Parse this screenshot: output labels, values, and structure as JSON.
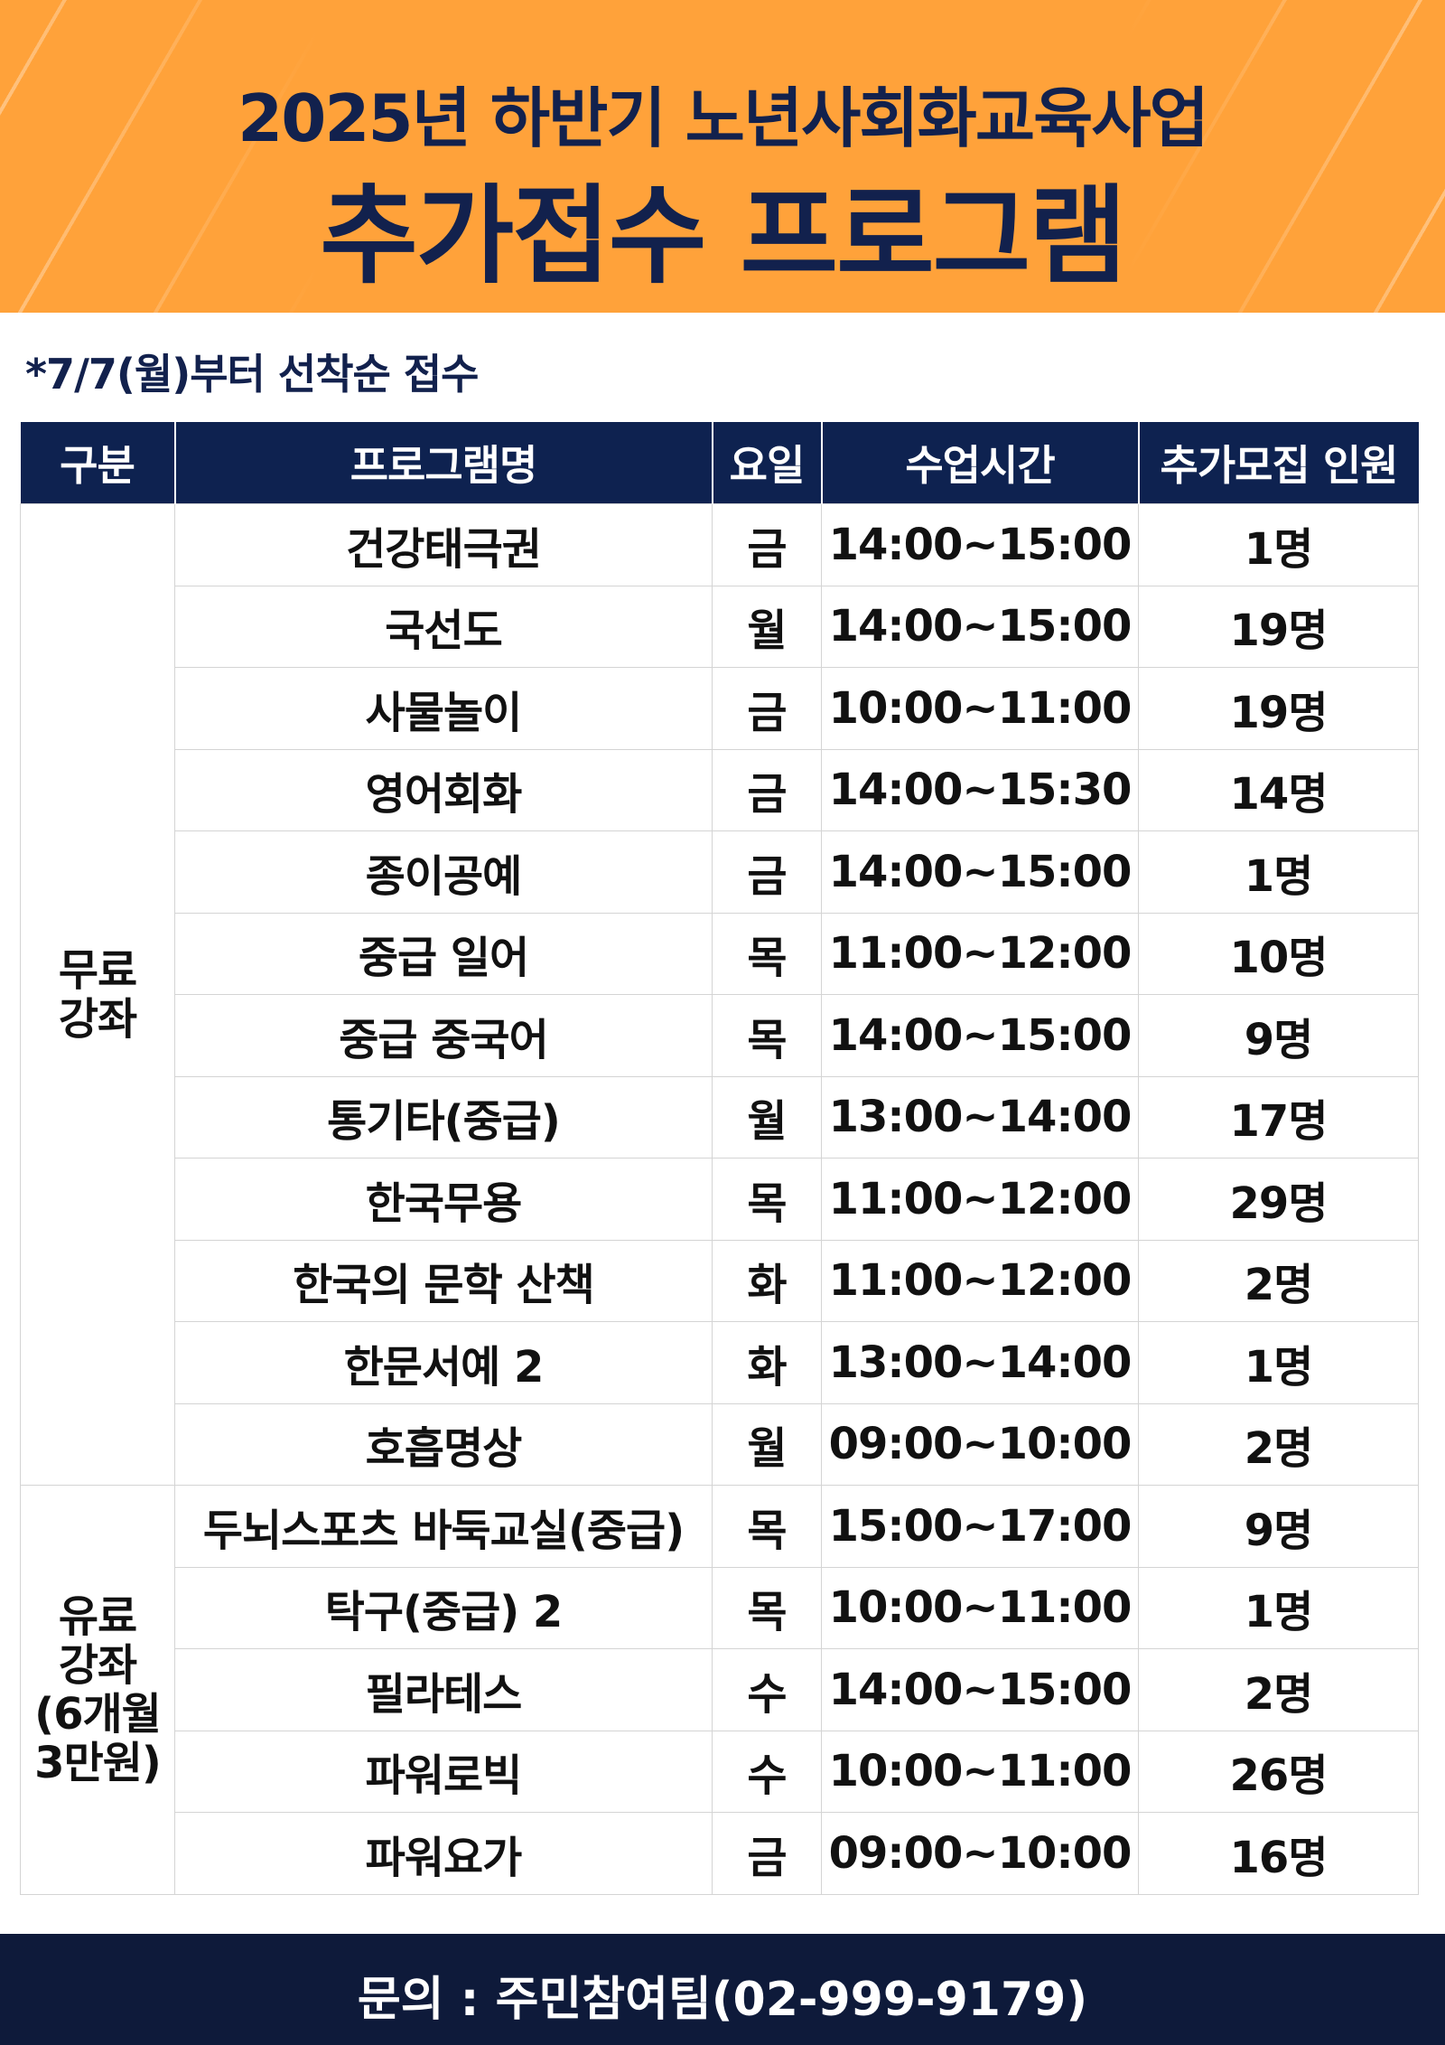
{
  "header": {
    "title_line1": "2025년 하반기 노년사회화교육사업",
    "title_line2": "추가접수 프로그램"
  },
  "note": "*7/7(월)부터 선착순 접수",
  "table": {
    "columns": [
      "구분",
      "프로그램명",
      "요일",
      "수업시간",
      "추가모집 인원"
    ],
    "groups": [
      {
        "label": "무료\n강좌",
        "rows": [
          [
            "건강태극권",
            "금",
            "14:00~15:00",
            "1명"
          ],
          [
            "국선도",
            "월",
            "14:00~15:00",
            "19명"
          ],
          [
            "사물놀이",
            "금",
            "10:00~11:00",
            "19명"
          ],
          [
            "영어회화",
            "금",
            "14:00~15:30",
            "14명"
          ],
          [
            "종이공예",
            "금",
            "14:00~15:00",
            "1명"
          ],
          [
            "중급 일어",
            "목",
            "11:00~12:00",
            "10명"
          ],
          [
            "중급 중국어",
            "목",
            "14:00~15:00",
            "9명"
          ],
          [
            "통기타(중급)",
            "월",
            "13:00~14:00",
            "17명"
          ],
          [
            "한국무용",
            "목",
            "11:00~12:00",
            "29명"
          ],
          [
            "한국의 문학 산책",
            "화",
            "11:00~12:00",
            "2명"
          ],
          [
            "한문서예 2",
            "화",
            "13:00~14:00",
            "1명"
          ],
          [
            "호흡명상",
            "월",
            "09:00~10:00",
            "2명"
          ]
        ]
      },
      {
        "label": "유료\n강좌\n(6개월\n3만원)",
        "rows": [
          [
            "두뇌스포츠 바둑교실(중급)",
            "목",
            "15:00~17:00",
            "9명"
          ],
          [
            "탁구(중급) 2",
            "목",
            "10:00~11:00",
            "1명"
          ],
          [
            "필라테스",
            "수",
            "14:00~15:00",
            "2명"
          ],
          [
            "파워로빅",
            "수",
            "10:00~11:00",
            "26명"
          ],
          [
            "파워요가",
            "금",
            "09:00~10:00",
            "16명"
          ]
        ]
      }
    ]
  },
  "footer": "문의 : 주민참여팀(02-999-9179)"
}
